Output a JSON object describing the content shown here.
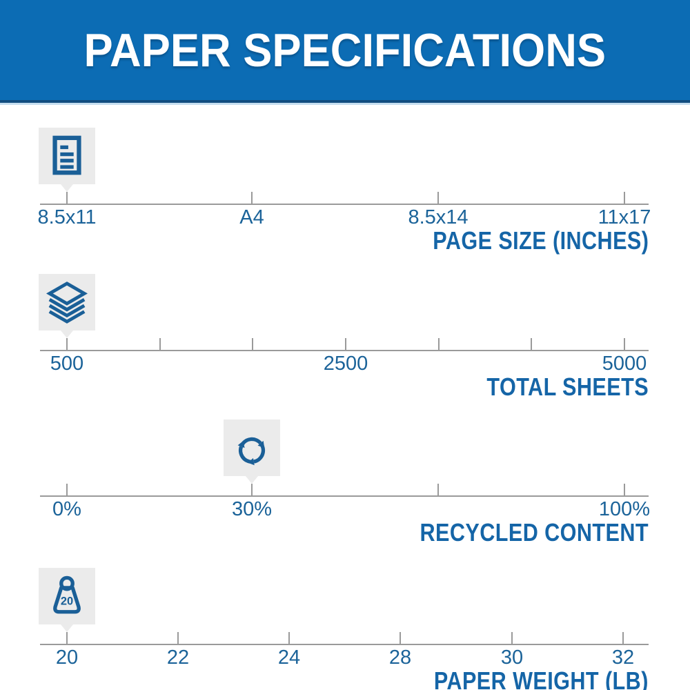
{
  "header": {
    "title": "PAPER SPECIFICATIONS"
  },
  "specs": [
    {
      "name": "page-size",
      "title": "PAGE SIZE (INCHES)",
      "icon": "document-icon",
      "selected_value": "8.5x11",
      "selected_index": 0,
      "ticks": [
        {
          "pos": 97,
          "label": "8.5x11"
        },
        {
          "pos": 365,
          "label": "A4"
        },
        {
          "pos": 635,
          "label": "8.5x14"
        },
        {
          "pos": 905,
          "label": "11x17"
        }
      ]
    },
    {
      "name": "total-sheets",
      "title": "TOTAL SHEETS",
      "icon": "paper-stack-icon",
      "selected_value": "500",
      "selected_index": 0,
      "ticks": [
        {
          "pos": 97,
          "label": "500"
        },
        {
          "pos": 232,
          "label": ""
        },
        {
          "pos": 366,
          "label": ""
        },
        {
          "pos": 501,
          "label": "2500"
        },
        {
          "pos": 636,
          "label": ""
        },
        {
          "pos": 770,
          "label": ""
        },
        {
          "pos": 905,
          "label": "5000"
        }
      ]
    },
    {
      "name": "recycled-content",
      "title": "RECYCLED CONTENT",
      "icon": "recycle-icon",
      "selected_value": "30%",
      "selected_index": 1,
      "ticks": [
        {
          "pos": 97,
          "label": "0%"
        },
        {
          "pos": 365,
          "label": "30%"
        },
        {
          "pos": 635,
          "label": ""
        },
        {
          "pos": 905,
          "label": "100%"
        }
      ]
    },
    {
      "name": "paper-weight",
      "title": "PAPER WEIGHT (LB)",
      "icon": "weight-icon",
      "icon_text": "20",
      "selected_value": "20",
      "selected_index": 0,
      "ticks": [
        {
          "pos": 97,
          "label": "20"
        },
        {
          "pos": 258,
          "label": "22"
        },
        {
          "pos": 419,
          "label": "24"
        },
        {
          "pos": 580,
          "label": "28"
        },
        {
          "pos": 742,
          "label": "30"
        },
        {
          "pos": 903,
          "label": "32"
        }
      ]
    }
  ],
  "colors": {
    "banner_background": "#0c6cb4",
    "banner_edge_dark": "#124d80",
    "banner_edge_light": "#c6def0",
    "banner_text": "#ffffff",
    "label_blue": "#1b6399",
    "title_blue": "#1565a7",
    "icon_blue": "#1a5f97",
    "marker_background": "#ebebeb",
    "axis_gray": "#9a9a9a"
  }
}
